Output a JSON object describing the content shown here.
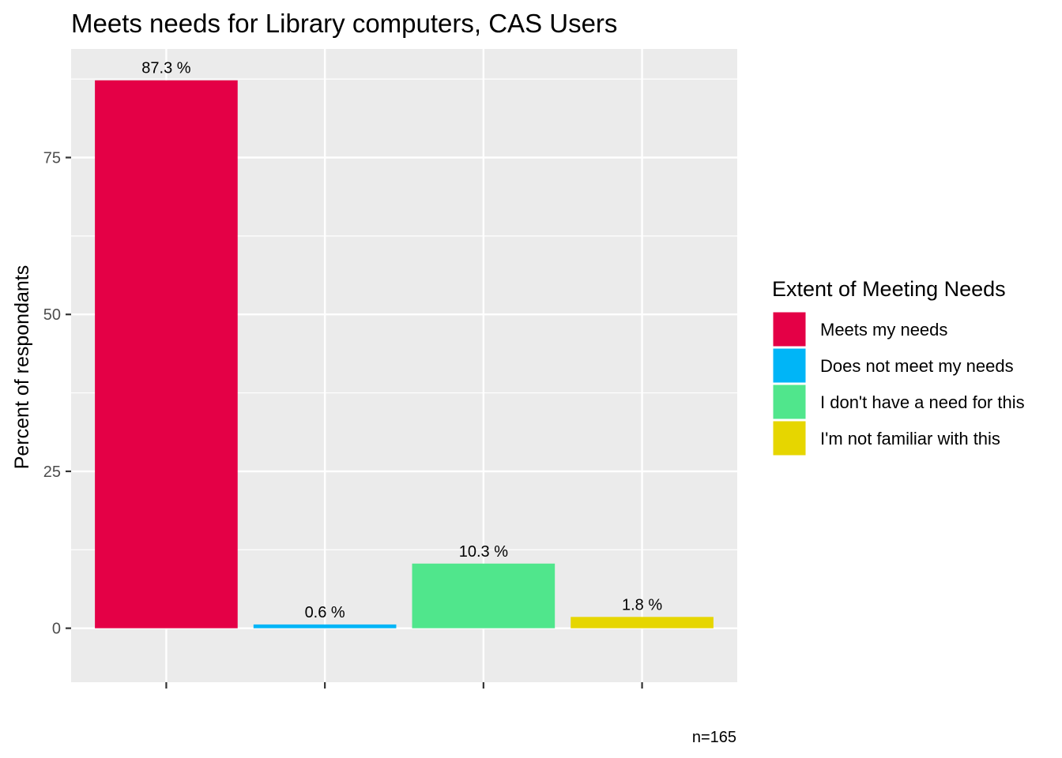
{
  "chart_data": {
    "type": "bar",
    "title": "Meets needs for Library computers, CAS Users",
    "xlabel": "",
    "ylabel": "Percent of respondants",
    "ylim": [
      -8.6,
      92.3
    ],
    "yticks": [
      0,
      25,
      50,
      75
    ],
    "grid": true,
    "categories": [
      "Meets my needs",
      "Does not meet my needs",
      "I don't have a need for this",
      "I'm not familiar with this"
    ],
    "values": [
      87.3,
      0.6,
      10.3,
      1.8
    ],
    "value_labels": [
      "87.3 %",
      "0.6 %",
      "10.3 %",
      "1.8 %"
    ],
    "colors": [
      "#E40046",
      "#00B5F7",
      "#50E68C",
      "#E6D600"
    ],
    "legend": {
      "title": "Extent of Meeting Needs",
      "position": "right",
      "entries": [
        "Meets my needs",
        "Does not meet my needs",
        "I don't have a need for this",
        "I'm not familiar with this"
      ]
    },
    "caption": "n=165"
  }
}
